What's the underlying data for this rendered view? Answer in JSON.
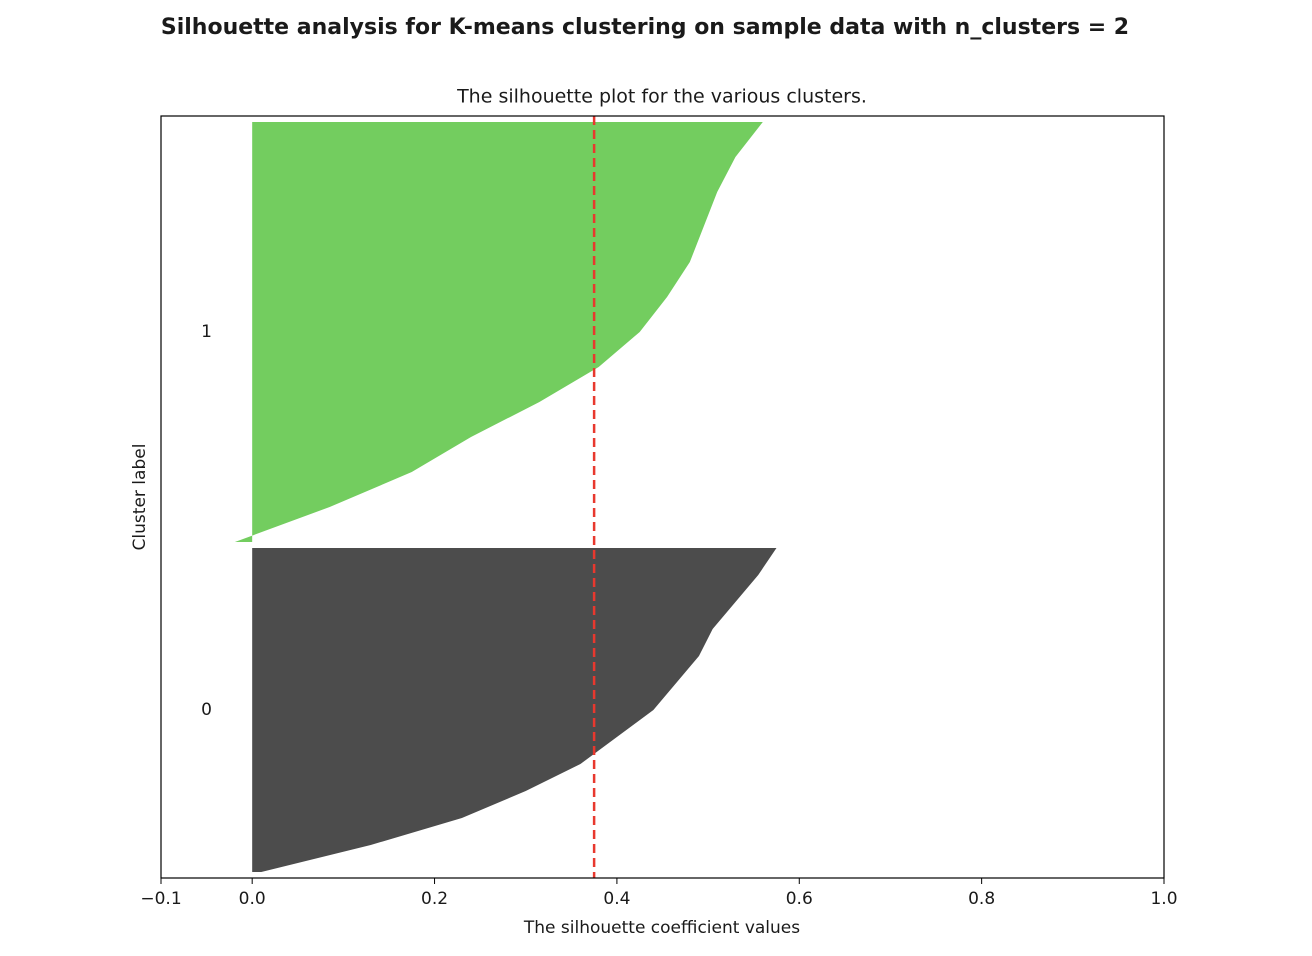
{
  "chart_data": {
    "type": "silhouette",
    "title": "Silhouette analysis for K-means clustering on sample data with n_clusters = 2",
    "subtitle": "The silhouette plot for the various clusters.",
    "x_label": "The silhouette coefficient values",
    "y_label": "Cluster label",
    "xlim": [
      -0.1,
      1.0
    ],
    "xticks": [
      {
        "value": -0.1,
        "label": "−0.1"
      },
      {
        "value": 0,
        "label": "0.0"
      },
      0.2,
      0.4,
      0.6,
      0.8,
      {
        "value": 1,
        "label": "1.0"
      }
    ],
    "ylim": [
      0,
      1270
    ],
    "series": [
      {
        "name": "0",
        "color": "#4c4c4c",
        "size": 540,
        "values": [
          0.01,
          0.13,
          0.23,
          0.3,
          0.36,
          0.4,
          0.44,
          0.465,
          0.49,
          0.505,
          0.53,
          0.555,
          0.575
        ]
      },
      {
        "name": "1",
        "color": "#73cd5f",
        "size": 700,
        "values": [
          -0.019,
          0.085,
          0.175,
          0.24,
          0.315,
          0.38,
          0.425,
          0.455,
          0.48,
          0.495,
          0.51,
          0.53,
          0.56
        ]
      }
    ],
    "average_line": {
      "value": 0.375,
      "color": "#e8382e"
    }
  }
}
